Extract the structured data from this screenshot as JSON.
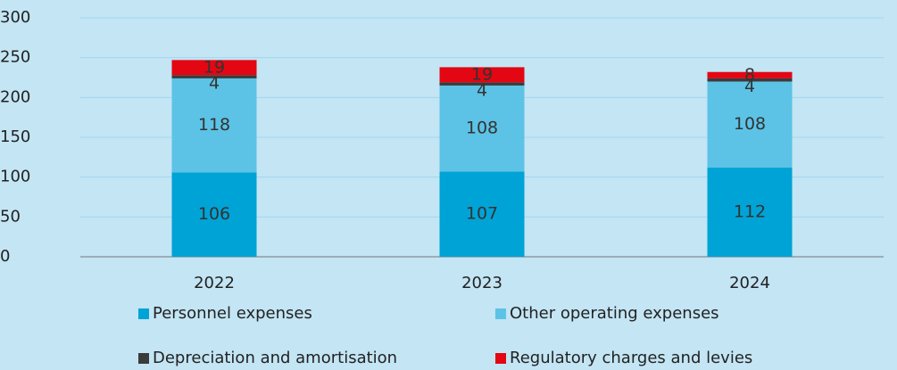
{
  "chart_data": {
    "type": "stacked_bar",
    "categories": [
      "2022",
      "2023",
      "2024"
    ],
    "series": [
      {
        "name": "Personnel expenses",
        "color": "#00a3d6",
        "values": [
          106,
          107,
          112
        ]
      },
      {
        "name": "Other operating expenses",
        "color": "#5cc3e6",
        "values": [
          118,
          108,
          108
        ]
      },
      {
        "name": "Depreciation and amortisation",
        "color": "#3b3b3b",
        "values": [
          4,
          4,
          4
        ]
      },
      {
        "name": "Regulatory charges and levies",
        "color": "#e30613",
        "values": [
          19,
          19,
          8
        ]
      }
    ],
    "ylim": [
      0,
      300
    ],
    "yticks": [
      0,
      50,
      100,
      150,
      200,
      250,
      300
    ],
    "grid": true
  }
}
